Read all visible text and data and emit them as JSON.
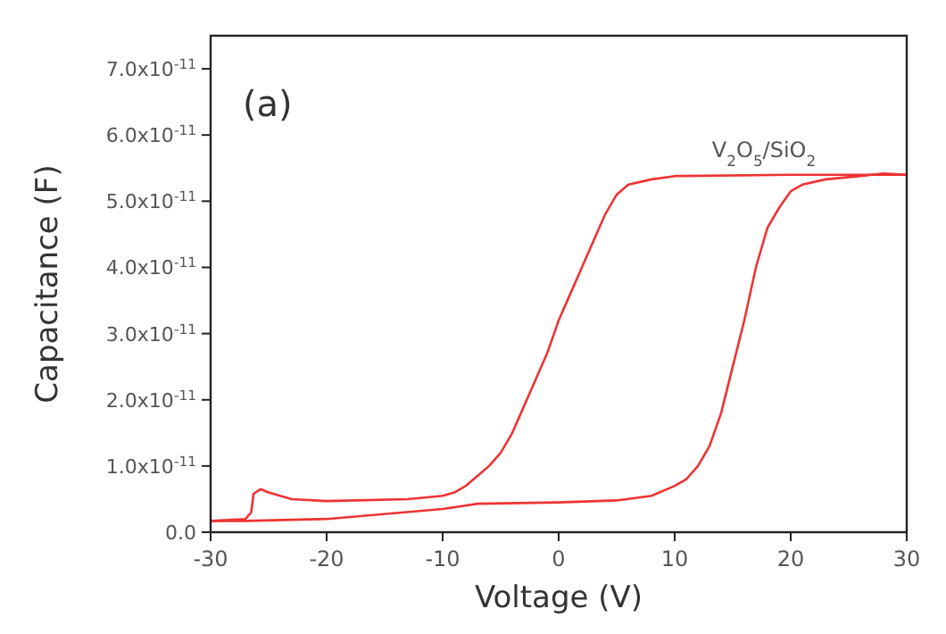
{
  "chart_data": {
    "type": "line",
    "xlabel": "Voltage (V)",
    "ylabel": "Capacitance (F)",
    "xlim": [
      -30,
      30
    ],
    "xticks": [
      -30,
      -20,
      -10,
      0,
      10,
      20,
      30
    ],
    "ylim": [
      0,
      7.5e-11
    ],
    "yticks": [
      {
        "value": 0,
        "label": "0.0"
      },
      {
        "value": 1e-11,
        "label": "1.0x10$^{-11}$"
      },
      {
        "value": 2e-11,
        "label": "2.0x10$^{-11}$"
      },
      {
        "value": 3e-11,
        "label": "3.0x10$^{-11}$"
      },
      {
        "value": 4e-11,
        "label": "4.0x10$^{-11}$"
      },
      {
        "value": 5e-11,
        "label": "5.0x10$^{-11}$"
      },
      {
        "value": 6e-11,
        "label": "6.0x10$^{-11}$"
      },
      {
        "value": 7e-11,
        "label": "7.0x10$^{-11}$"
      }
    ],
    "grid": false,
    "line_style": "solid",
    "annotations": [
      "(a)",
      "V$_{2}$O$_{5}$/SiO$_{2}$"
    ],
    "series": [
      {
        "color": "#ee3333",
        "x": [
          -30,
          -27,
          -20,
          -10,
          -7,
          0,
          5,
          8,
          10,
          11,
          12,
          13,
          14,
          15,
          16,
          17,
          18,
          19,
          20,
          21,
          23,
          26,
          28,
          30
        ],
        "values": [
          1.7e-12,
          1.7e-12,
          2e-12,
          3.5e-12,
          4.3e-12,
          4.5e-12,
          4.8e-12,
          5.5e-12,
          7e-12,
          8e-12,
          1e-11,
          1.3e-11,
          1.8e-11,
          2.5e-11,
          3.2e-11,
          4e-11,
          4.6e-11,
          4.9e-11,
          5.15e-11,
          5.25e-11,
          5.33e-11,
          5.38e-11,
          5.42e-11,
          5.4e-11
        ]
      },
      {
        "color": "#ee3333",
        "x": [
          30,
          20,
          10,
          8,
          6,
          5,
          4,
          3,
          2,
          1,
          0,
          -1,
          -2,
          -3,
          -4,
          -5,
          -6,
          -7,
          -8,
          -9,
          -10,
          -13,
          -20,
          -23,
          -25,
          -25.7,
          -26.3,
          -26.5,
          -27,
          -30
        ],
        "values": [
          5.4e-11,
          5.4e-11,
          5.38e-11,
          5.33e-11,
          5.25e-11,
          5.1e-11,
          4.8e-11,
          4.4e-11,
          4e-11,
          3.6e-11,
          3.2e-11,
          2.7e-11,
          2.3e-11,
          1.9e-11,
          1.5e-11,
          1.2e-11,
          1e-11,
          8.5e-12,
          7e-12,
          6e-12,
          5.5e-12,
          5e-12,
          4.7e-12,
          5e-12,
          6e-12,
          6.5e-12,
          5.8e-12,
          3e-12,
          2e-12,
          1.7e-12
        ]
      }
    ]
  }
}
